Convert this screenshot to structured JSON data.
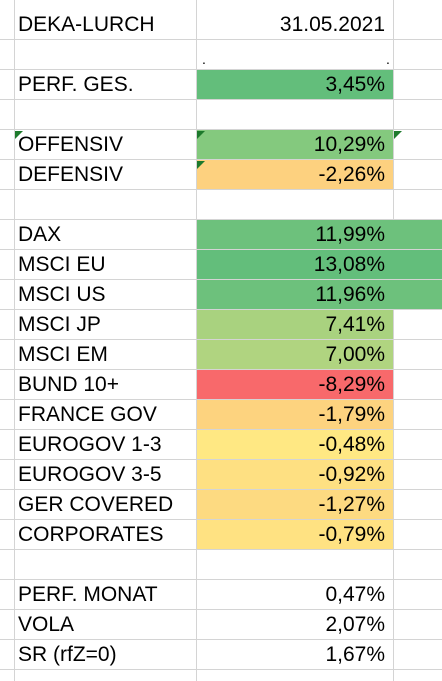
{
  "sheet": {
    "header": {
      "label": "DEKA-LURCH",
      "value": "31.05.2021"
    },
    "marks": {
      "left": ".",
      "right": "."
    },
    "perf_total": {
      "label": "PERF. GES.",
      "value": "3,45%",
      "color": "#63be7b"
    },
    "strategies": [
      {
        "label": "OFFENSIV",
        "value": "10,29%",
        "color": "#84c97e"
      },
      {
        "label": "DEFENSIV",
        "value": "-2,26%",
        "color": "#fdd17f"
      }
    ],
    "indices": [
      {
        "label": "DAX",
        "value": "11,99%",
        "color": "#6dc17c"
      },
      {
        "label": "MSCI EU",
        "value": "13,08%",
        "color": "#63be7b"
      },
      {
        "label": "MSCI US",
        "value": "11,96%",
        "color": "#6dc17c"
      },
      {
        "label": "MSCI JP",
        "value": "7,41%",
        "color": "#a9d27f"
      },
      {
        "label": "MSCI EM",
        "value": "7,00%",
        "color": "#b0d480"
      },
      {
        "label": "BUND 10+",
        "value": "-8,29%",
        "color": "#f8696b"
      },
      {
        "label": "FRANCE GOV",
        "value": "-1,79%",
        "color": "#fdd37f"
      },
      {
        "label": "EUROGOV 1-3",
        "value": "-0,48%",
        "color": "#ffe883"
      },
      {
        "label": "EUROGOV 3-5",
        "value": "-0,92%",
        "color": "#fee082"
      },
      {
        "label": "GER COVERED",
        "value": "-1,27%",
        "color": "#fdda81"
      },
      {
        "label": "CORPORATES",
        "value": "-0,79%",
        "color": "#ffe282"
      }
    ],
    "stats": [
      {
        "label": "PERF. MONAT",
        "value": "0,47%"
      },
      {
        "label": "VOLA",
        "value": "2,07%"
      },
      {
        "label": "SR (rfZ=0)",
        "value": "1,67%"
      }
    ]
  }
}
